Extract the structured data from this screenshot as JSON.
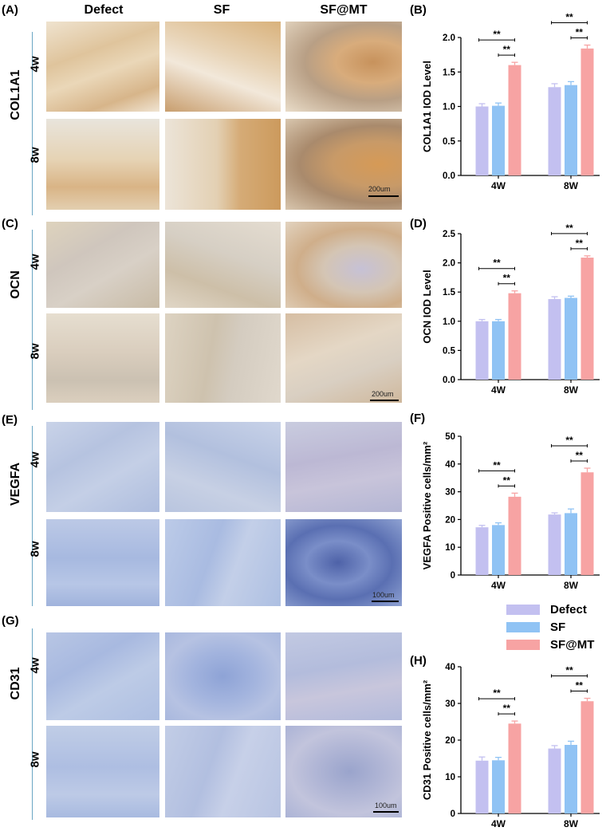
{
  "columns": [
    "Defect",
    "SF",
    "SF@MT"
  ],
  "image_panels": [
    {
      "letter": "(A)",
      "stain": "COL1A1",
      "weeks": [
        "4w",
        "8w"
      ],
      "scale": "200um"
    },
    {
      "letter": "(C)",
      "stain": "OCN",
      "weeks": [
        "4w",
        "8w"
      ],
      "scale": "200um"
    },
    {
      "letter": "(E)",
      "stain": "VEGFA",
      "weeks": [
        "4w",
        "8w"
      ],
      "scale": "100um"
    },
    {
      "letter": "(G)",
      "stain": "CD31",
      "weeks": [
        "4w",
        "8w"
      ],
      "scale": "100um"
    }
  ],
  "colors": {
    "defect": "#c3c0f0",
    "sf": "#90c3f4",
    "sfmt": "#f7a3a3",
    "divider": "#6aa6c4",
    "col1a1_bg": "#e6d3b6",
    "ocn_bg": "#e4dccd",
    "vegfa_bg": "#b8c6e2",
    "cd31_bg": "#bac7e4"
  },
  "legend": [
    {
      "label": "Defect",
      "color": "#c3c0f0"
    },
    {
      "label": "SF",
      "color": "#90c3f4"
    },
    {
      "label": "SF@MT",
      "color": "#f7a3a3"
    }
  ],
  "chart_data": [
    {
      "panel": "(B)",
      "type": "bar",
      "ylabel": "COL1A1 IOD Level",
      "categories": [
        "4W",
        "8W"
      ],
      "ylim": [
        0,
        2.0
      ],
      "yticks": [
        "0.0",
        "0.5",
        "1.0",
        "1.5",
        "2.0"
      ],
      "series": [
        {
          "name": "Defect",
          "values": [
            1.0,
            1.28
          ],
          "errors": [
            0.04,
            0.05
          ]
        },
        {
          "name": "SF",
          "values": [
            1.01,
            1.31
          ],
          "errors": [
            0.04,
            0.05
          ]
        },
        {
          "name": "SF@MT",
          "values": [
            1.6,
            1.84
          ],
          "errors": [
            0.04,
            0.05
          ]
        }
      ],
      "significance": [
        {
          "category": 0,
          "from": 0,
          "to": 2,
          "label": "**"
        },
        {
          "category": 0,
          "from": 1,
          "to": 2,
          "label": "**"
        },
        {
          "category": 1,
          "from": 0,
          "to": 2,
          "label": "**"
        },
        {
          "category": 1,
          "from": 1,
          "to": 2,
          "label": "**"
        }
      ]
    },
    {
      "panel": "(D)",
      "type": "bar",
      "ylabel": "OCN IOD Level",
      "categories": [
        "4W",
        "8W"
      ],
      "ylim": [
        0,
        2.5
      ],
      "yticks": [
        "0.0",
        "0.5",
        "1.0",
        "1.5",
        "2.0",
        "2.5"
      ],
      "series": [
        {
          "name": "Defect",
          "values": [
            1.0,
            1.38
          ],
          "errors": [
            0.03,
            0.04
          ]
        },
        {
          "name": "SF",
          "values": [
            1.0,
            1.4
          ],
          "errors": [
            0.03,
            0.03
          ]
        },
        {
          "name": "SF@MT",
          "values": [
            1.48,
            2.09
          ],
          "errors": [
            0.04,
            0.03
          ]
        }
      ],
      "significance": [
        {
          "category": 0,
          "from": 0,
          "to": 2,
          "label": "**"
        },
        {
          "category": 0,
          "from": 1,
          "to": 2,
          "label": "**"
        },
        {
          "category": 1,
          "from": 0,
          "to": 2,
          "label": "**"
        },
        {
          "category": 1,
          "from": 1,
          "to": 2,
          "label": "**"
        }
      ]
    },
    {
      "panel": "(F)",
      "type": "bar",
      "ylabel": "VEGFA Positive cells/mm²",
      "categories": [
        "4W",
        "8W"
      ],
      "ylim": [
        0,
        50
      ],
      "yticks": [
        "0",
        "10",
        "20",
        "30",
        "40",
        "50"
      ],
      "series": [
        {
          "name": "Defect",
          "values": [
            17.2,
            21.8
          ],
          "errors": [
            0.7,
            0.6
          ]
        },
        {
          "name": "SF",
          "values": [
            18.0,
            22.3
          ],
          "errors": [
            0.8,
            1.5
          ]
        },
        {
          "name": "SF@MT",
          "values": [
            28.2,
            37.0
          ],
          "errors": [
            1.3,
            1.5
          ]
        }
      ],
      "significance": [
        {
          "category": 0,
          "from": 0,
          "to": 2,
          "label": "**"
        },
        {
          "category": 0,
          "from": 1,
          "to": 2,
          "label": "**"
        },
        {
          "category": 1,
          "from": 0,
          "to": 2,
          "label": "**"
        },
        {
          "category": 1,
          "from": 1,
          "to": 2,
          "label": "**"
        }
      ]
    },
    {
      "panel": "(H)",
      "type": "bar",
      "ylabel": "CD31 Positive cells/mm²",
      "categories": [
        "4W",
        "8W"
      ],
      "ylim": [
        0,
        40
      ],
      "yticks": [
        "0",
        "10",
        "20",
        "30",
        "40"
      ],
      "series": [
        {
          "name": "Defect",
          "values": [
            14.4,
            17.7
          ],
          "errors": [
            1.0,
            0.8
          ]
        },
        {
          "name": "SF",
          "values": [
            14.5,
            18.7
          ],
          "errors": [
            0.8,
            1.0
          ]
        },
        {
          "name": "SF@MT",
          "values": [
            24.5,
            30.6
          ],
          "errors": [
            0.7,
            0.8
          ]
        }
      ],
      "significance": [
        {
          "category": 0,
          "from": 0,
          "to": 2,
          "label": "**"
        },
        {
          "category": 0,
          "from": 1,
          "to": 2,
          "label": "**"
        },
        {
          "category": 1,
          "from": 0,
          "to": 2,
          "label": "**"
        },
        {
          "category": 1,
          "from": 1,
          "to": 2,
          "label": "**"
        }
      ]
    }
  ]
}
